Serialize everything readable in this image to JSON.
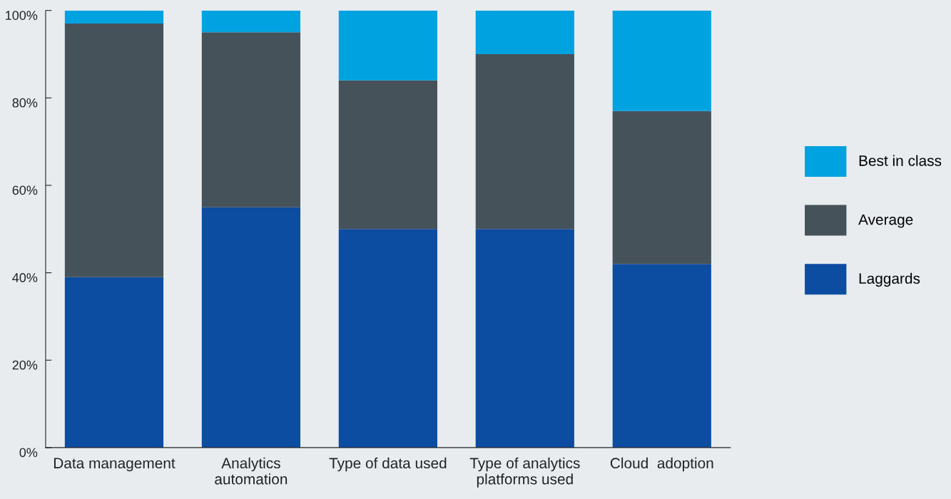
{
  "chart_data": {
    "type": "bar",
    "stacked": true,
    "categories": [
      "Data management",
      "Analytics\nautomation",
      "Type of data used",
      "Type of analytics\nplatforms used",
      "Cloud  adoption"
    ],
    "series": [
      {
        "name": "Laggards",
        "color": "#0c4da2",
        "values": [
          39,
          55,
          50,
          50,
          42
        ]
      },
      {
        "name": "Average",
        "color": "#465259",
        "values": [
          58,
          40,
          34,
          40,
          35
        ]
      },
      {
        "name": "Best in class",
        "color": "#00a3e0",
        "values": [
          3,
          5,
          16,
          10,
          23
        ]
      }
    ],
    "ylim": [
      0,
      100
    ],
    "yticks": [
      {
        "value": 0,
        "label": "0%"
      },
      {
        "value": 20,
        "label": "20%"
      },
      {
        "value": 40,
        "label": "40%"
      },
      {
        "value": 60,
        "label": "60%"
      },
      {
        "value": 80,
        "label": "80%"
      },
      {
        "value": 100,
        "label": "100%"
      }
    ],
    "grid": false,
    "legend": "right"
  }
}
